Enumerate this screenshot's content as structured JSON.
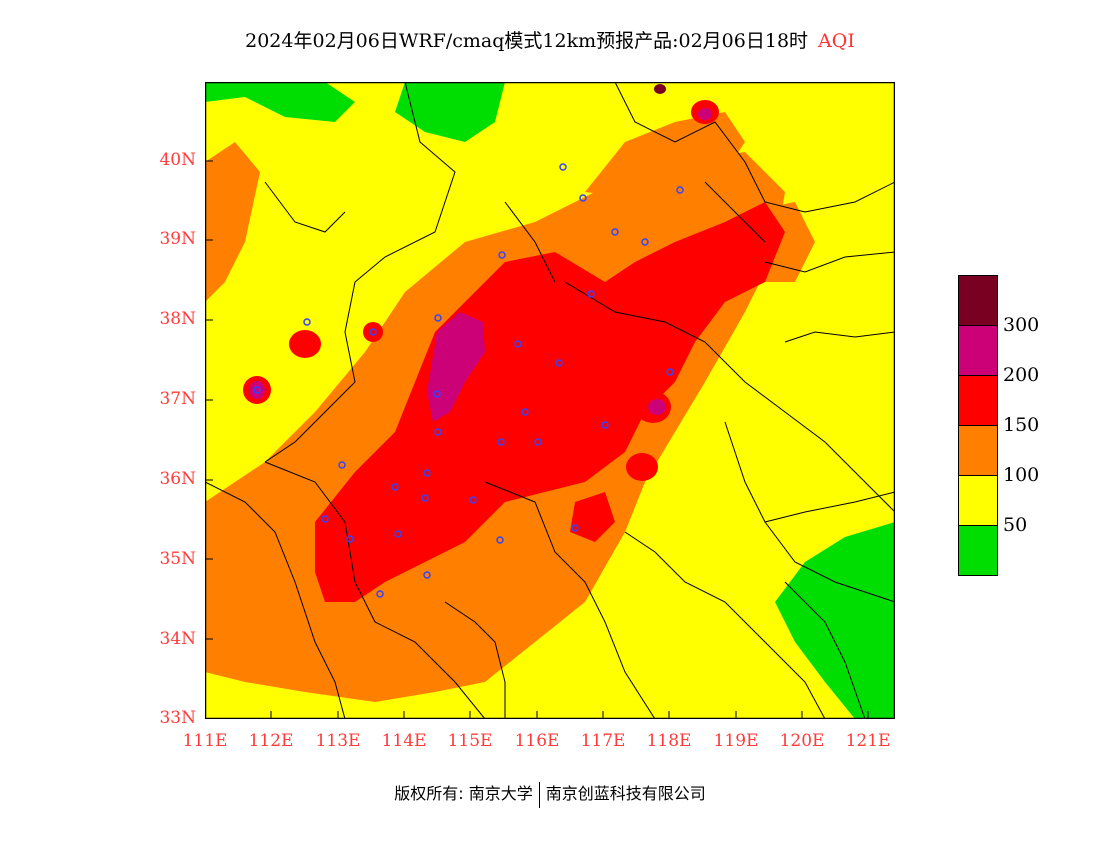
{
  "title": {
    "main": "2024年02月06日WRF/cmaq模式12km预报产品:02月06日18时",
    "variable": "AQI"
  },
  "map": {
    "lon_range": [
      111,
      121.4
    ],
    "lat_range": [
      33,
      41
    ],
    "y_ticks": [
      "33N",
      "34N",
      "35N",
      "36N",
      "37N",
      "38N",
      "39N",
      "40N"
    ],
    "x_ticks": [
      "111E",
      "112E",
      "113E",
      "114E",
      "115E",
      "116E",
      "117E",
      "118E",
      "119E",
      "120E",
      "121E"
    ],
    "tick_color": "#ff3b3b"
  },
  "legend": {
    "levels": [
      {
        "range": "0-50",
        "color": "#00dd00"
      },
      {
        "range": "50-100",
        "color": "#ffff00"
      },
      {
        "range": "100-150",
        "color": "#ff8000"
      },
      {
        "range": "150-200",
        "color": "#ff0000"
      },
      {
        "range": "200-300",
        "color": "#cc0077"
      },
      {
        "range": ">300",
        "color": "#7a0022"
      }
    ],
    "labels": [
      "300",
      "200",
      "150",
      "100",
      "50"
    ]
  },
  "footer": {
    "left": "版权所有: 南京大学",
    "right": "南京创蓝科技有限公司"
  }
}
